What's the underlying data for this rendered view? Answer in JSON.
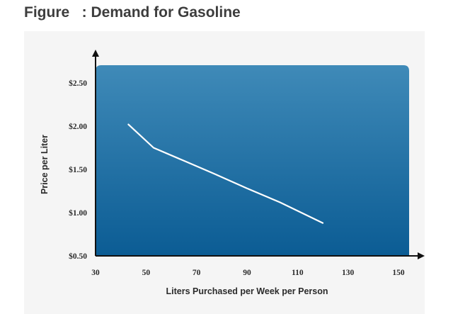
{
  "figure": {
    "title": "Figure   : Demand for Gasoline"
  },
  "chart_data": {
    "type": "line",
    "title": "",
    "xlabel": "Liters Purchased per Week per Person",
    "ylabel": "Price per Liter",
    "xlim": [
      30,
      150
    ],
    "ylim": [
      0.5,
      2.5
    ],
    "x_ticks": [
      30,
      50,
      70,
      90,
      110,
      130,
      150
    ],
    "x_tick_labels": [
      "30",
      "50",
      "70",
      "90",
      "110",
      "130",
      "150"
    ],
    "y_ticks": [
      0.5,
      1.0,
      1.5,
      2.0,
      2.5
    ],
    "y_tick_labels": [
      "$0.50",
      "$1.00",
      "$1.50",
      "$2.00",
      "$2.50"
    ],
    "grid": false,
    "series": [
      {
        "x": [
          43,
          53,
          65,
          77,
          90,
          103,
          120
        ],
        "y": [
          2.02,
          1.75,
          1.6,
          1.45,
          1.28,
          1.12,
          0.88
        ],
        "color": "#ffffff"
      }
    ],
    "colors": {
      "plot_top": "#3f8ab8",
      "plot_bottom": "#0b5c94",
      "axis": "#111111"
    }
  }
}
